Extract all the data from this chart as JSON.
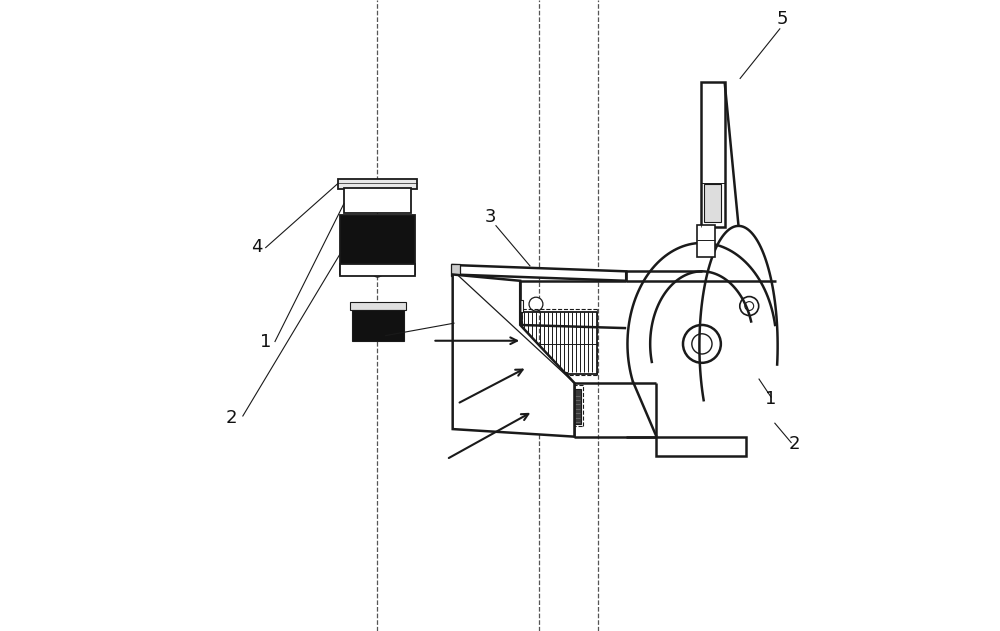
{
  "background_color": "#ffffff",
  "line_color": "#1a1a1a",
  "dash_color": "#555555",
  "fill_black": "#111111",
  "label_color": "#111111",
  "fig_width": 10.0,
  "fig_height": 6.31,
  "dpi": 100
}
